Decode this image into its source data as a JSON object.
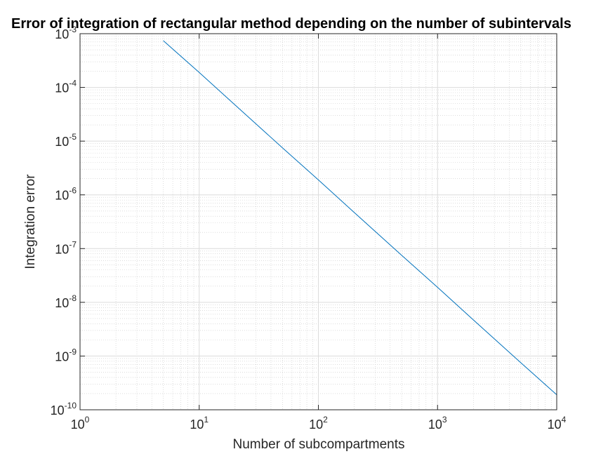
{
  "chart_data": {
    "type": "line",
    "title": "Error of integration of rectangular method depending on the number of subintervals",
    "xlabel": "Number of subcompartments",
    "ylabel": "Integration error",
    "xscale": "log",
    "yscale": "log",
    "xlim": [
      1,
      10000
    ],
    "ylim": [
      1e-10,
      0.001
    ],
    "grid": true,
    "minor_grid": true,
    "x_ticks": [
      {
        "base": "10",
        "exp": "0",
        "value": 1
      },
      {
        "base": "10",
        "exp": "1",
        "value": 10
      },
      {
        "base": "10",
        "exp": "2",
        "value": 100
      },
      {
        "base": "10",
        "exp": "3",
        "value": 1000
      },
      {
        "base": "10",
        "exp": "4",
        "value": 10000
      }
    ],
    "y_ticks": [
      {
        "base": "10",
        "exp": "-10",
        "value": 1e-10
      },
      {
        "base": "10",
        "exp": "-9",
        "value": 1e-09
      },
      {
        "base": "10",
        "exp": "-8",
        "value": 1e-08
      },
      {
        "base": "10",
        "exp": "-7",
        "value": 1e-07
      },
      {
        "base": "10",
        "exp": "-6",
        "value": 1e-06
      },
      {
        "base": "10",
        "exp": "-5",
        "value": 1e-05
      },
      {
        "base": "10",
        "exp": "-4",
        "value": 0.0001
      },
      {
        "base": "10",
        "exp": "-3",
        "value": 0.001
      }
    ],
    "series": [
      {
        "color": "#0072bd",
        "x": [
          5,
          10,
          20,
          50,
          100,
          200,
          500,
          1000,
          2000,
          5000,
          10000
        ],
        "y": [
          0.00074,
          0.00019,
          4.7e-05,
          7.5e-06,
          1.9e-06,
          4.7e-07,
          7.5e-08,
          1.9e-08,
          4.7e-09,
          7.5e-10,
          1.9e-10
        ]
      }
    ]
  }
}
